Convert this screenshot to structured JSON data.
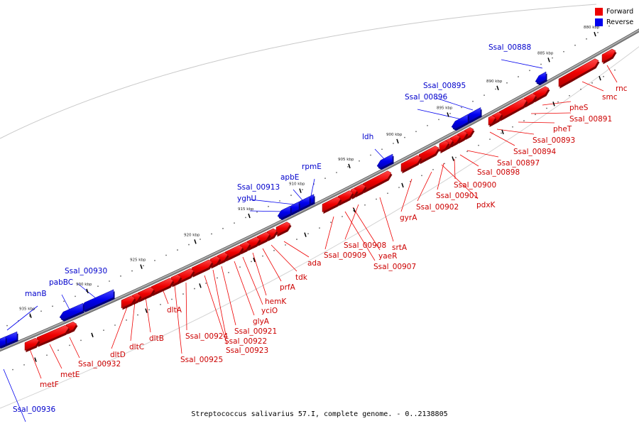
{
  "caption": "Streptococcus salivarius 57.I, complete genome. - 0..2138805",
  "legend": [
    {
      "label": "Forward",
      "color": "#ee0000"
    },
    {
      "label": "Reverse",
      "color": "#0000ee"
    }
  ],
  "colors": {
    "forward": "#ee0000",
    "reverse": "#0000ee",
    "backbone": "#8a8a8a"
  },
  "ticks": [
    {
      "label": "880 kbp"
    },
    {
      "label": "885 kbp"
    },
    {
      "label": "890 kbp"
    },
    {
      "label": "895 kbp"
    },
    {
      "label": "900 kbp"
    },
    {
      "label": "905 kbp"
    },
    {
      "label": "910 kbp"
    },
    {
      "label": "915 kbp"
    },
    {
      "label": "920 kbp"
    },
    {
      "label": "925 kbp"
    },
    {
      "label": "930 kbp"
    },
    {
      "label": "935 kbp"
    }
  ],
  "genes": [
    {
      "name": "rnc",
      "strand": "forward"
    },
    {
      "name": "smc",
      "strand": "forward"
    },
    {
      "name": "pheS",
      "strand": "forward"
    },
    {
      "name": "Ssal_00891",
      "strand": "forward"
    },
    {
      "name": "pheT",
      "strand": "forward"
    },
    {
      "name": "Ssal_00893",
      "strand": "forward"
    },
    {
      "name": "Ssal_00894",
      "strand": "forward"
    },
    {
      "name": "Ssal_00897",
      "strand": "forward"
    },
    {
      "name": "Ssal_00898",
      "strand": "forward"
    },
    {
      "name": "Ssal_00900",
      "strand": "forward"
    },
    {
      "name": "Ssal_00901",
      "strand": "forward"
    },
    {
      "name": "pdxK",
      "strand": "forward"
    },
    {
      "name": "Ssal_00902",
      "strand": "forward"
    },
    {
      "name": "gyrA",
      "strand": "forward"
    },
    {
      "name": "srtA",
      "strand": "forward"
    },
    {
      "name": "Ssal_00908",
      "strand": "forward"
    },
    {
      "name": "yaeR",
      "strand": "forward"
    },
    {
      "name": "Ssal_00907",
      "strand": "forward"
    },
    {
      "name": "Ssal_00909",
      "strand": "forward"
    },
    {
      "name": "ada",
      "strand": "forward"
    },
    {
      "name": "tdk",
      "strand": "forward"
    },
    {
      "name": "prfA",
      "strand": "forward"
    },
    {
      "name": "hemK",
      "strand": "forward"
    },
    {
      "name": "yciO",
      "strand": "forward"
    },
    {
      "name": "glyA",
      "strand": "forward"
    },
    {
      "name": "Ssal_00921",
      "strand": "forward"
    },
    {
      "name": "Ssal_00922",
      "strand": "forward"
    },
    {
      "name": "Ssal_00923",
      "strand": "forward"
    },
    {
      "name": "Ssal_00924",
      "strand": "forward"
    },
    {
      "name": "Ssal_00925",
      "strand": "forward"
    },
    {
      "name": "dltA",
      "strand": "forward"
    },
    {
      "name": "dltB",
      "strand": "forward"
    },
    {
      "name": "dltC",
      "strand": "forward"
    },
    {
      "name": "dltD",
      "strand": "forward"
    },
    {
      "name": "Ssal_00932",
      "strand": "forward"
    },
    {
      "name": "metE",
      "strand": "forward"
    },
    {
      "name": "metF",
      "strand": "forward"
    },
    {
      "name": "Ssal_00888",
      "strand": "reverse"
    },
    {
      "name": "Ssal_00895",
      "strand": "reverse"
    },
    {
      "name": "Ssal_00896",
      "strand": "reverse"
    },
    {
      "name": "ldh",
      "strand": "reverse"
    },
    {
      "name": "rpmE",
      "strand": "reverse"
    },
    {
      "name": "apbE",
      "strand": "reverse"
    },
    {
      "name": "Ssal_00913",
      "strand": "reverse"
    },
    {
      "name": "yghU",
      "strand": "reverse"
    },
    {
      "name": "Ssal_00930",
      "strand": "reverse"
    },
    {
      "name": "pabBC",
      "strand": "reverse"
    },
    {
      "name": "manB",
      "strand": "reverse"
    },
    {
      "name": "Ssal_00936",
      "strand": "reverse"
    }
  ]
}
